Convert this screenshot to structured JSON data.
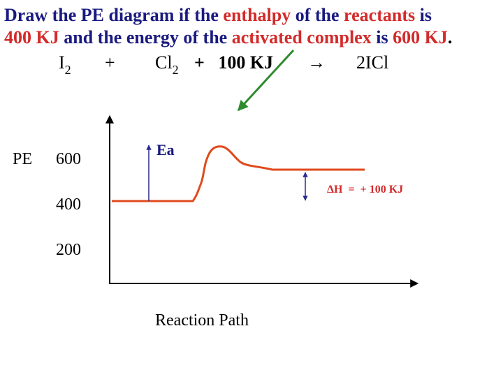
{
  "title": {
    "lines": [
      [
        {
          "text": "Draw the PE diagram if the ",
          "color": "#1a1a80"
        },
        {
          "text": "enthalpy",
          "color": "#d42a2a"
        },
        {
          "text": " of the ",
          "color": "#1a1a80"
        },
        {
          "text": "reactants",
          "color": "#d42a2a"
        },
        {
          "text": " is",
          "color": "#1a1a80"
        }
      ],
      [
        {
          "text": "400 KJ",
          "color": "#d42a2a"
        },
        {
          "text": " and the energy of the ",
          "color": "#1a1a80"
        },
        {
          "text": "activated complex",
          "color": "#d42a2a"
        },
        {
          "text": " is ",
          "color": "#1a1a80"
        },
        {
          "text": "600 KJ",
          "color": "#d42a2a"
        },
        {
          "text": ".",
          "color": "#000000"
        }
      ]
    ]
  },
  "equation": {
    "reactant1": "I",
    "reactant1_sub": "2",
    "plus1": "+",
    "reactant2": "Cl",
    "reactant2_sub": "2",
    "energy": "+   100 KJ",
    "arrow": "→",
    "product": "2ICl"
  },
  "diagram": {
    "y_axis_label": "PE",
    "levels": [
      "600",
      "400",
      "200"
    ],
    "ea_label": "Ea",
    "delta_h_label": "ΔH  =  + 100 KJ",
    "x_axis_label": "Reaction Path"
  }
}
